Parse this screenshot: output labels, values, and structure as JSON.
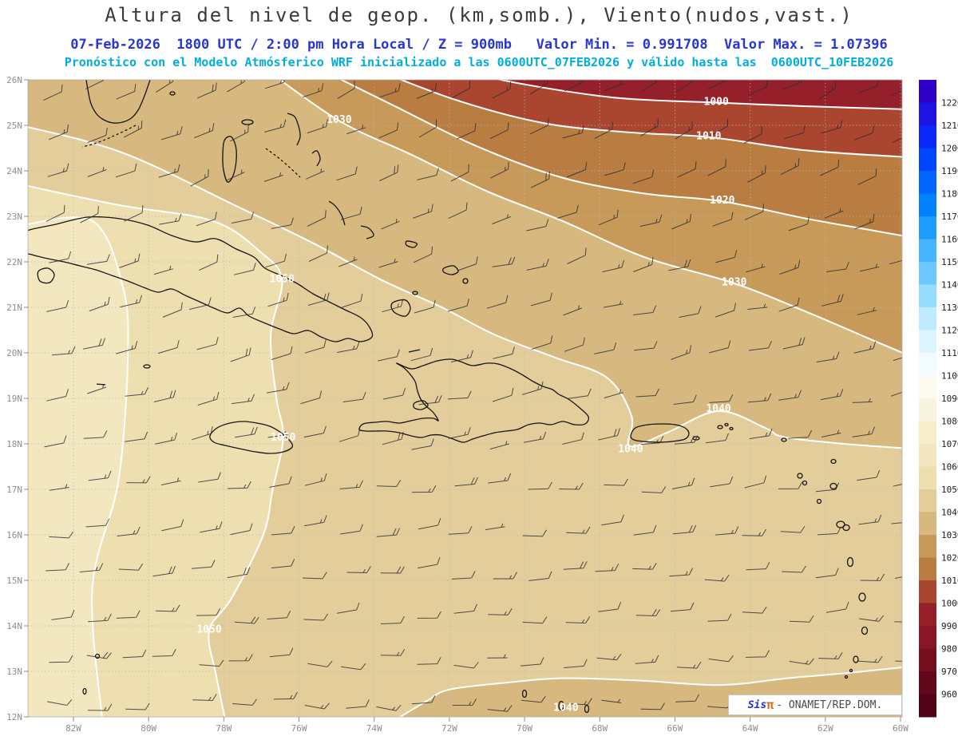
{
  "header": {
    "title": "Altura del nivel de geop. (km,somb.), Viento(nudos,vast.)",
    "subtitle_blue": "07-Feb-2026  1800 UTC / 2:00 pm Hora Local / Z = 900mb   Valor Min. = 0.991708  Valor Max. = 1.07396",
    "subtitle_cyan": "Pronóstico con el Modelo Atmósferico WRF inicializado a las 0600UTC_07FEB2026 y válido hasta las  0600UTC_10FEB2026",
    "title_color": "#3a3a3a",
    "blue_color": "#2737cf",
    "cyan_color": "#00aedd"
  },
  "watermark": {
    "brand_prefix": "Sis",
    "brand_pi": "π",
    "suffix": "- ONAMET/REP.DOM.",
    "prefix_color": "#2234c0",
    "pi_color": "#df6a1d",
    "suffix_color": "#4a4a4a"
  },
  "chart_data": {
    "type": "heatmap",
    "title": "Altura del nivel de geop. (km,somb.), Viento(nudos,vast.)",
    "field": "Altura del nivel de geopotencial (km, sombreado)",
    "wind_field": "Viento (nudos, vastagos)",
    "level_mb": 900,
    "valid_date": "07-Feb-2026",
    "valid_time_utc": "1800 UTC",
    "valid_time_local": "2:00 pm Hora Local",
    "value_min": 0.991708,
    "value_max": 1.07396,
    "model": "WRF",
    "init_time": "0600UTC_07FEB2026",
    "end_time": "0600UTC_10FEB2026",
    "axes": {
      "lat_ticks": [
        "26N",
        "25N",
        "24N",
        "23N",
        "22N",
        "21N",
        "20N",
        "19N",
        "18N",
        "17N",
        "16N",
        "15N",
        "14N",
        "13N",
        "12N"
      ],
      "lon_ticks": [
        "82W",
        "80W",
        "78W",
        "76W",
        "74W",
        "72W",
        "70W",
        "68W",
        "66W",
        "64W",
        "62W",
        "60W"
      ],
      "lat_range": [
        12,
        26
      ],
      "lon_range_w": [
        82,
        60
      ]
    },
    "colorbar": {
      "tick_labels": [
        1220,
        1210,
        1200,
        1190,
        1180,
        1170,
        1160,
        1150,
        1140,
        1130,
        1120,
        1110,
        1100,
        1090,
        1080,
        1070,
        1060,
        1050,
        1040,
        1030,
        1020,
        1010,
        1000,
        990,
        980,
        970,
        960
      ],
      "colors": [
        "#2E00C8",
        "#1E14E6",
        "#0A28FA",
        "#0046FF",
        "#0064FF",
        "#0082FF",
        "#1E9BFF",
        "#46B4FF",
        "#6EC8FF",
        "#96DCFF",
        "#BEEBFF",
        "#DCF5FF",
        "#F2FBFF",
        "#FCFAEE",
        "#F9F4DF",
        "#F6EECB",
        "#F2E7BE",
        "#EDDFB0",
        "#E3CE9B",
        "#D7B87E",
        "#C89A5A",
        "#B97C41",
        "#AA4530",
        "#962029",
        "#871726",
        "#750F20",
        "#62081A",
        "#500314"
      ]
    },
    "base_band": 1040,
    "contours": [
      {
        "value": 1050,
        "side": "west",
        "pts": [
          [
            83.4,
            23.7
          ],
          [
            80.8,
            23.25
          ],
          [
            78.3,
            22.9
          ],
          [
            77.0,
            22.2
          ],
          [
            76.45,
            21.6
          ],
          [
            76.75,
            20.4
          ],
          [
            76.6,
            19.0
          ],
          [
            76.42,
            18.14
          ],
          [
            76.7,
            17.0
          ],
          [
            76.95,
            16.0
          ],
          [
            77.8,
            14.6
          ],
          [
            78.39,
            13.89
          ],
          [
            78.2,
            12.9
          ],
          [
            77.9,
            11.7
          ]
        ],
        "close": [
          [
            83.5,
            11.7
          ]
        ],
        "labels": [
          [
            76.45,
            21.62
          ],
          [
            76.42,
            18.14
          ],
          [
            78.39,
            13.92
          ]
        ]
      },
      {
        "value": 1060,
        "side": "west",
        "pts": [
          [
            83.4,
            22.8
          ],
          [
            81.5,
            22.9
          ],
          [
            80.7,
            21.5
          ],
          [
            80.55,
            20.0
          ],
          [
            80.8,
            17.2
          ],
          [
            81.5,
            14.8
          ],
          [
            81.2,
            11.7
          ]
        ],
        "close": [
          [
            83.5,
            11.7
          ]
        ],
        "labels": []
      },
      {
        "value": 1040,
        "side": "ne",
        "pts": [
          [
            83.4,
            25.0
          ],
          [
            80.7,
            24.4
          ],
          [
            77.6,
            23.2
          ],
          [
            75.6,
            22.4
          ],
          [
            73.8,
            21.6
          ],
          [
            72.2,
            21.0
          ],
          [
            70.8,
            20.4
          ],
          [
            69.2,
            19.9
          ],
          [
            67.8,
            19.45
          ],
          [
            67.15,
            18.6
          ],
          [
            67.2,
            17.95
          ],
          [
            66.2,
            18.25
          ],
          [
            64.84,
            18.72
          ],
          [
            63.6,
            18.35
          ],
          [
            63.1,
            18.15
          ],
          [
            61.5,
            18.0
          ],
          [
            59.8,
            17.9
          ]
        ],
        "close": [
          [
            59.8,
            26.4
          ],
          [
            83.5,
            26.4
          ]
        ],
        "labels": [
          [
            64.84,
            18.77
          ],
          [
            67.18,
            17.89
          ]
        ]
      },
      {
        "value": 1030,
        "side": "ne",
        "pts": [
          [
            77.0,
            26.3
          ],
          [
            74.93,
            25.1
          ],
          [
            73.0,
            24.35
          ],
          [
            71.0,
            23.55
          ],
          [
            69.0,
            22.9
          ],
          [
            66.8,
            22.1
          ],
          [
            64.42,
            21.53
          ],
          [
            62.5,
            20.9
          ],
          [
            60.8,
            20.3
          ],
          [
            59.8,
            19.95
          ]
        ],
        "close": [
          [
            59.8,
            26.4
          ]
        ],
        "labels": [
          [
            74.93,
            25.12
          ],
          [
            64.42,
            21.55
          ]
        ]
      },
      {
        "value": 1020,
        "side": "ne",
        "pts": [
          [
            75.6,
            26.3
          ],
          [
            73.4,
            25.4
          ],
          [
            71.3,
            24.55
          ],
          [
            69.0,
            23.85
          ],
          [
            66.8,
            23.5
          ],
          [
            64.74,
            23.33
          ],
          [
            62.5,
            22.95
          ],
          [
            60.8,
            22.7
          ],
          [
            59.8,
            22.55
          ]
        ],
        "close": [
          [
            59.8,
            26.4
          ]
        ],
        "labels": [
          [
            64.74,
            23.35
          ]
        ]
      },
      {
        "value": 1010,
        "side": "ne",
        "pts": [
          [
            74.2,
            26.3
          ],
          [
            71.8,
            25.55
          ],
          [
            69.5,
            25.05
          ],
          [
            67.3,
            24.85
          ],
          [
            65.1,
            24.74
          ],
          [
            62.5,
            24.45
          ],
          [
            59.8,
            24.3
          ]
        ],
        "close": [
          [
            59.8,
            26.4
          ]
        ],
        "labels": [
          [
            65.1,
            24.76
          ]
        ]
      },
      {
        "value": 1000,
        "side": "ne",
        "pts": [
          [
            72.3,
            26.3
          ],
          [
            70.0,
            25.9
          ],
          [
            67.5,
            25.6
          ],
          [
            64.9,
            25.5
          ],
          [
            62.5,
            25.42
          ],
          [
            59.8,
            25.35
          ]
        ],
        "close": [
          [
            59.8,
            26.4
          ]
        ],
        "labels": [
          [
            64.9,
            25.52
          ]
        ]
      },
      {
        "value": 1040,
        "side": "south",
        "pts": [
          [
            73.9,
            11.7
          ],
          [
            72.6,
            12.35
          ],
          [
            72.0,
            12.6
          ],
          [
            70.5,
            12.75
          ],
          [
            69.0,
            12.85
          ],
          [
            67.0,
            12.8
          ],
          [
            64.8,
            12.7
          ],
          [
            63.0,
            12.85
          ],
          [
            61.6,
            12.95
          ],
          [
            59.8,
            13.1
          ]
        ],
        "close": [
          [
            59.8,
            11.7
          ]
        ],
        "labels": [
          [
            68.9,
            12.2
          ]
        ]
      }
    ],
    "wind_grid": {
      "lat_start": 25.7,
      "lat_step": 0.96,
      "rows": 15,
      "lon_start_w": 82.7,
      "lon_step": 0.98,
      "cols": 24,
      "speed_knots_range": [
        5,
        20
      ],
      "direction_regime": "alisios del ENE-E"
    }
  }
}
